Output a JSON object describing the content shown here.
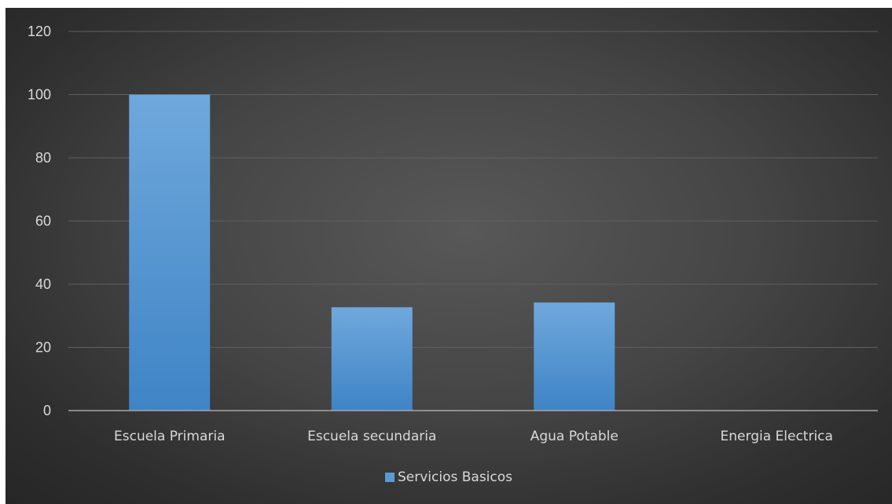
{
  "chart_data": {
    "type": "bar",
    "categories": [
      "Escuela Primaria",
      "Escuela secundaria",
      "Agua Potable",
      "Energia Electrica"
    ],
    "series": [
      {
        "name": "Servicios Basicos",
        "values": [
          100,
          32.7,
          34.2,
          0
        ],
        "color": "#5b9bd5"
      }
    ],
    "ylim": [
      0,
      120
    ],
    "yticks": [
      0,
      20,
      40,
      60,
      80,
      100,
      120
    ],
    "grid": true,
    "legend_position": "bottom",
    "background": "#404040",
    "title": "",
    "xlabel": "",
    "ylabel": ""
  }
}
